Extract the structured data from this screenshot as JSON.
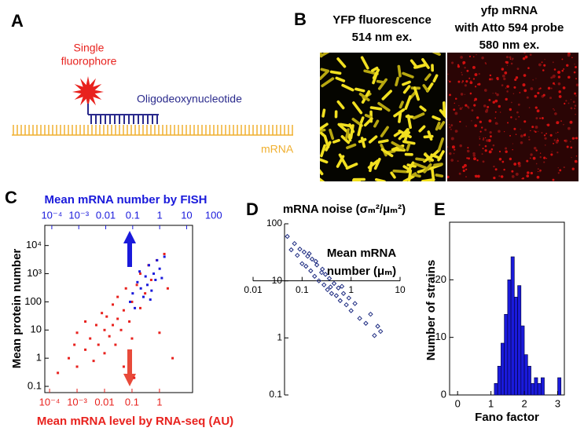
{
  "panel_labels": [
    "A",
    "B",
    "C",
    "D",
    "E"
  ],
  "diagram": {
    "fluorophore_label": [
      "Single",
      "fluorophore"
    ],
    "oligo_label": "Oligodeoxynucleotide",
    "mrna_label": "mRNA"
  },
  "micrographs": {
    "left_title": [
      "YFP fluorescence",
      "514 nm ex."
    ],
    "right_title": [
      "yfp mRNA",
      "with Atto 594 probe",
      "580 nm ex."
    ]
  },
  "chart_data": [
    {
      "type": "scatter",
      "log_x": true,
      "log_y": true,
      "xlabel": "Mean mRNA level by RNA-seq (AU)",
      "x2label": "Mean mRNA number by FISH",
      "ylabel": "Mean protein number",
      "xlim": [
        6.7e-05,
        16
      ],
      "xticks": [
        {
          "value": 0.0001,
          "label": "10⁻⁴"
        },
        {
          "value": 0.001,
          "label": "10⁻³"
        },
        0.01,
        0.1,
        1
      ],
      "x2lim": [
        5.5e-05,
        16.6
      ],
      "x2ticks": [
        {
          "value": 0.0001,
          "label": "10⁻⁴"
        },
        {
          "value": 0.001,
          "label": "10⁻³"
        },
        0.01,
        0.1,
        1,
        10,
        100
      ],
      "ylim": [
        0.06,
        52000
      ],
      "yticks": [
        0.1,
        1,
        10,
        100,
        {
          "value": 1000,
          "label": "10³"
        },
        {
          "value": 10000,
          "label": "10⁴"
        }
      ],
      "series": [
        {
          "color": "#e8221e",
          "x": [
            0.0002,
            0.0005,
            0.0008,
            0.001,
            0.001,
            0.002,
            0.002,
            0.003,
            0.004,
            0.005,
            0.006,
            0.008,
            0.01,
            0.01,
            0.012,
            0.015,
            0.02,
            0.02,
            0.025,
            0.03,
            0.03,
            0.04,
            0.05,
            0.05,
            0.06,
            0.08,
            0.1,
            0.1,
            0.12,
            0.15,
            0.2,
            0.2,
            0.3,
            0.4,
            0.5,
            0.8,
            1,
            1.5,
            2,
            3
          ],
          "values": [
            0.3,
            1,
            3,
            0.5,
            8,
            2,
            20,
            5,
            0.8,
            15,
            3,
            40,
            10,
            1.5,
            30,
            6,
            80,
            15,
            3,
            25,
            150,
            10,
            50,
            0.5,
            300,
            20,
            100,
            5,
            0.2,
            400,
            60,
            1000,
            200,
            2000,
            600,
            3000,
            8,
            5000,
            300,
            1
          ]
        },
        {
          "color": "#1a1adb",
          "axis": "x2",
          "x": [
            0.08,
            0.1,
            0.12,
            0.15,
            0.2,
            0.25,
            0.3,
            0.35,
            0.4,
            0.5,
            0.6,
            0.7,
            0.8,
            1,
            1.2,
            1.5,
            0.18,
            0.45
          ],
          "values": [
            100,
            200,
            60,
            500,
            300,
            150,
            800,
            400,
            2000,
            250,
            1000,
            600,
            3000,
            1500,
            700,
            4000,
            1200,
            120
          ]
        }
      ]
    },
    {
      "type": "scatter",
      "log_x": true,
      "log_y": true,
      "title": "mRNA noise (σₘ²/μₘ²)",
      "xlabel": [
        "Mean mRNA",
        "number (μₘ)"
      ],
      "xlim": [
        0.01,
        10
      ],
      "xticks": [
        0.01,
        0.1,
        1,
        10
      ],
      "ylim": [
        0.1,
        100
      ],
      "yticks": [
        0.1,
        1,
        10,
        100
      ],
      "x_axis_at": 10,
      "series": [
        {
          "color": "#1c2a80",
          "x": [
            0.05,
            0.06,
            0.07,
            0.08,
            0.09,
            0.1,
            0.11,
            0.12,
            0.13,
            0.15,
            0.16,
            0.18,
            0.2,
            0.22,
            0.25,
            0.28,
            0.3,
            0.33,
            0.36,
            0.4,
            0.45,
            0.5,
            0.55,
            0.6,
            0.7,
            0.8,
            0.9,
            1,
            1.2,
            1.5,
            2,
            2.5,
            3,
            3.5,
            4,
            0.14,
            0.19,
            0.26,
            0.38,
            0.65
          ],
          "values": [
            60,
            35,
            45,
            28,
            36,
            20,
            32,
            18,
            27,
            15,
            24,
            12,
            19,
            10,
            14,
            8.5,
            13,
            7,
            11,
            6,
            9,
            5.5,
            7.5,
            4.5,
            6,
            3.8,
            5,
            3,
            4,
            2.2,
            1.8,
            2.6,
            1.1,
            1.6,
            1.3,
            30,
            22,
            16,
            7.8,
            8
          ]
        }
      ]
    },
    {
      "type": "histogram",
      "xlabel": "Fano factor",
      "ylabel": "Number of strains",
      "color": "#1a1adb",
      "bins": [
        1.1,
        1.2,
        1.3,
        1.4,
        1.5,
        1.6,
        1.7,
        1.8,
        1.9,
        2.0,
        2.1,
        2.2,
        2.3,
        2.4,
        2.5,
        2.6,
        2.7,
        2.8,
        2.9,
        3.0,
        3.1
      ],
      "values": [
        2,
        5,
        9,
        14,
        20,
        24,
        17,
        19,
        12,
        7,
        5,
        2,
        3,
        2,
        3,
        0,
        0,
        0,
        0,
        3
      ],
      "xlim": [
        -0.24,
        3.2
      ],
      "xticks": [
        0,
        1,
        2,
        3
      ],
      "ylim": [
        0,
        30
      ],
      "yticks": [
        0,
        10,
        20
      ]
    }
  ]
}
